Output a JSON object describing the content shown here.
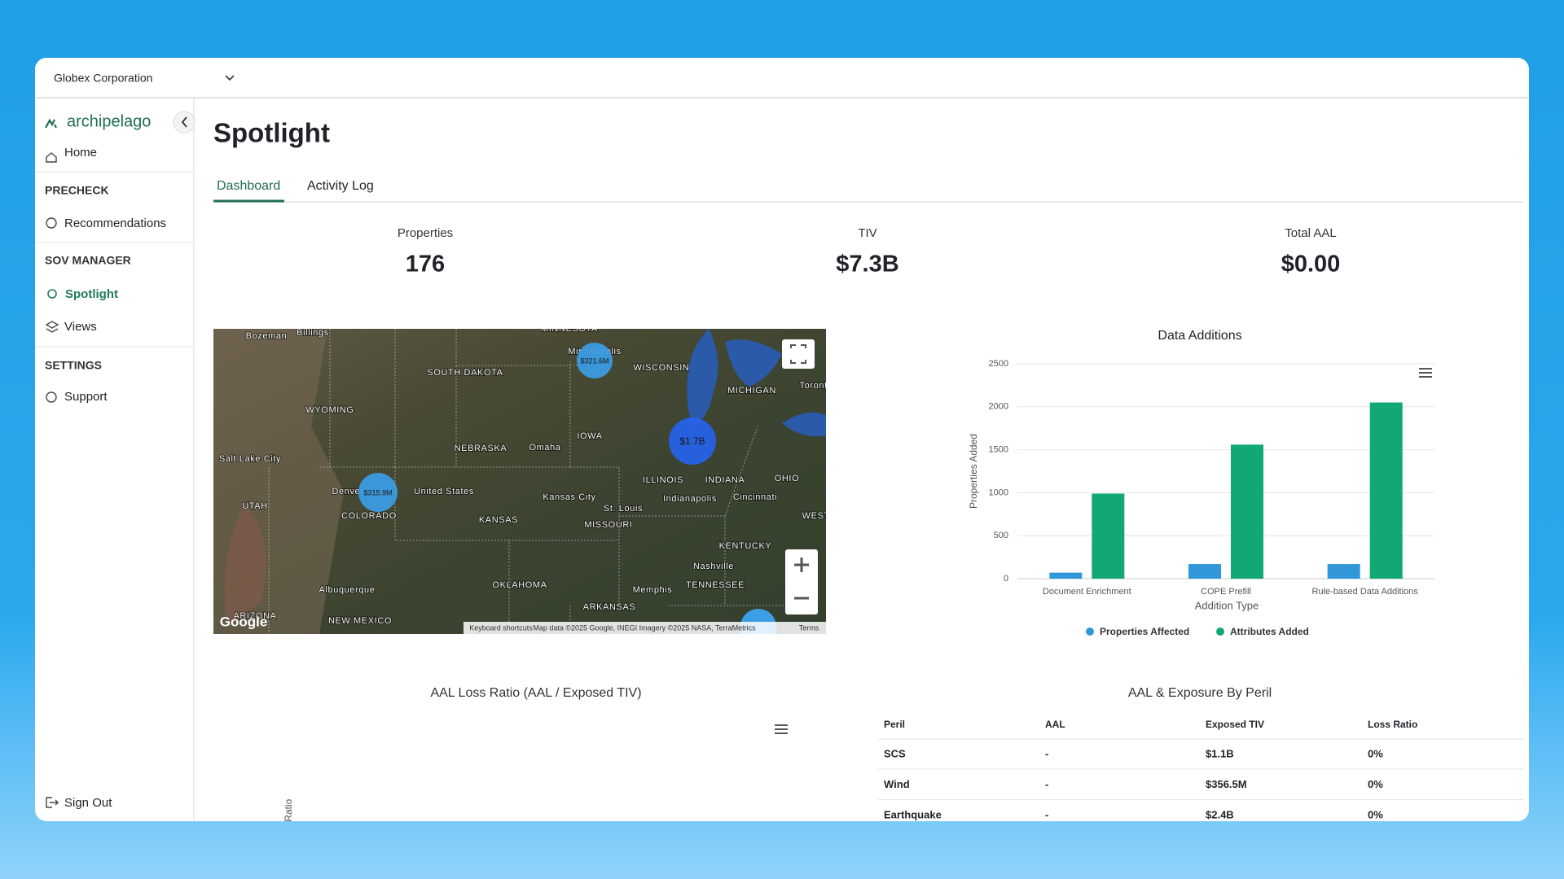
{
  "org_selector": {
    "label": "Globex Corporation"
  },
  "sidebar": {
    "logo": "archipelago",
    "home": "Home",
    "sections": [
      {
        "title": "PRECHECK",
        "items": [
          "Recommendations"
        ]
      },
      {
        "title": "SOV MANAGER",
        "items": [
          "Spotlight",
          "Views"
        ]
      },
      {
        "title": "SETTINGS",
        "items": [
          "Support"
        ]
      }
    ],
    "sign_out": "Sign Out"
  },
  "page": {
    "title": "Spotlight",
    "tabs": [
      "Dashboard",
      "Activity Log"
    ]
  },
  "kpis": [
    {
      "label": "Properties",
      "value": "176"
    },
    {
      "label": "TIV",
      "value": "$7.3B"
    },
    {
      "label": "Total AAL",
      "value": "$0.00"
    }
  ],
  "map": {
    "labels": [
      "Bozeman",
      "Billings",
      "MINNESOTA",
      "SOUTH DAKOTA",
      "Minneapolis",
      "WISCONSIN",
      "MICHIGAN",
      "Toronto",
      "WYOMING",
      "NEBRASKA",
      "Omaha",
      "IOWA",
      "Salt Lake City",
      "United States",
      "Denver",
      "COLORADO",
      "UTAH",
      "KANSAS",
      "Kansas City",
      "ILLINOIS",
      "INDIANA",
      "OHIO",
      "St. Louis",
      "Indianapolis",
      "Cincinnati",
      "WEST VIRGINIA",
      "MISSOURI",
      "KENTUCKY",
      "Nashville",
      "TENNESSEE",
      "OKLAHOMA",
      "Memphis",
      "Albuquerque",
      "ARKANSAS",
      "ARIZONA",
      "NEW MEXICO"
    ],
    "clusters": [
      "$321.6M",
      "$1.7B",
      "$315.9M"
    ],
    "logo": "Google",
    "attribution": [
      "Keyboard shortcuts",
      "Map data ©2025 Google, INEGI Imagery ©2025 NASA, TerraMetrics",
      "Terms"
    ]
  },
  "chart_data": {
    "type": "bar",
    "title": "Data Additions",
    "x_label": "Addition Type",
    "y_label": "Properties Added",
    "categories": [
      "Document Enrichment",
      "COPE Prefill",
      "Rule-based Data Additions"
    ],
    "series": [
      {
        "name": "Properties Affected",
        "color": "#3097d9",
        "values": [
          70,
          170,
          170
        ]
      },
      {
        "name": "Attributes Added",
        "color": "#12a874",
        "values": [
          990,
          1560,
          2050
        ]
      }
    ],
    "ylim": [
      0,
      2500
    ],
    "yticks": [
      0,
      500,
      1000,
      1500,
      2000,
      2500
    ],
    "grid": true,
    "legend": "bottom"
  },
  "aal_loss_ratio": {
    "title": "AAL Loss Ratio (AAL / Exposed TIV)",
    "y_label": "Loss Ratio"
  },
  "peril_table": {
    "title": "AAL & Exposure By Peril",
    "columns": [
      "Peril",
      "AAL",
      "Exposed TIV",
      "Loss Ratio"
    ],
    "rows": [
      [
        "SCS",
        "-",
        "$1.1B",
        "0%"
      ],
      [
        "Wind",
        "-",
        "$356.5M",
        "0%"
      ],
      [
        "Earthquake",
        "-",
        "$2.4B",
        "0%"
      ]
    ]
  }
}
